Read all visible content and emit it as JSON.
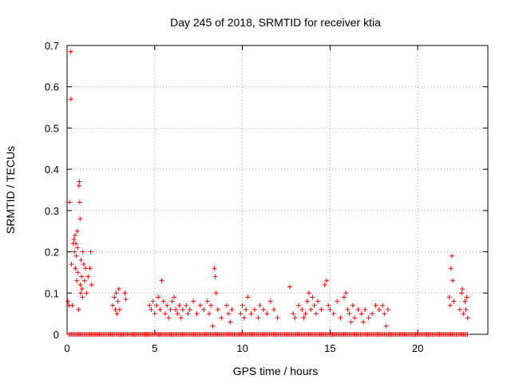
{
  "chart_data": {
    "type": "scatter",
    "title": "Day 245 of 2018, SRMTID for receiver ktia",
    "xlabel": "GPS time / hours",
    "ylabel": "SRMTID / TECUs",
    "xlim": [
      0,
      24
    ],
    "ylim": [
      0,
      0.7
    ],
    "xticks": [
      0,
      5,
      10,
      15,
      20
    ],
    "yticks": [
      0,
      0.1,
      0.2,
      0.3,
      0.4,
      0.5,
      0.6,
      0.7
    ],
    "ytick_labels": [
      "0",
      "0.1",
      "0.2",
      "0.3",
      "0.4",
      "0.5",
      "0.6",
      "0.7"
    ],
    "grid": true,
    "marker": "plus",
    "color": "#ff0000",
    "series": [
      {
        "name": "SRMTID",
        "points": [
          [
            0.05,
            0.08
          ],
          [
            0.1,
            0.07
          ],
          [
            0.15,
            0.32
          ],
          [
            0.2,
            0.685
          ],
          [
            0.22,
            0.57
          ],
          [
            0.25,
            0.17
          ],
          [
            0.3,
            0.07
          ],
          [
            0.35,
            0.22
          ],
          [
            0.4,
            0.23
          ],
          [
            0.42,
            0.2
          ],
          [
            0.45,
            0.24
          ],
          [
            0.48,
            0.16
          ],
          [
            0.5,
            0.22
          ],
          [
            0.52,
            0.19
          ],
          [
            0.55,
            0.13
          ],
          [
            0.58,
            0.25
          ],
          [
            0.6,
            0.21
          ],
          [
            0.62,
            0.15
          ],
          [
            0.65,
            0.06
          ],
          [
            0.68,
            0.36
          ],
          [
            0.7,
            0.37
          ],
          [
            0.72,
            0.32
          ],
          [
            0.74,
            0.28
          ],
          [
            0.76,
            0.12
          ],
          [
            0.78,
            0.1
          ],
          [
            0.8,
            0.18
          ],
          [
            0.82,
            0.14
          ],
          [
            0.85,
            0.11
          ],
          [
            0.88,
            0.09
          ],
          [
            0.9,
            0.2
          ],
          [
            0.95,
            0.17
          ],
          [
            1.0,
            0.13
          ],
          [
            1.05,
            0.16
          ],
          [
            1.1,
            0.1
          ],
          [
            1.2,
            0.14
          ],
          [
            1.3,
            0.16
          ],
          [
            1.35,
            0.2
          ],
          [
            1.4,
            0.12
          ],
          [
            2.6,
            0.07
          ],
          [
            2.7,
            0.09
          ],
          [
            2.75,
            0.06
          ],
          [
            2.8,
            0.1
          ],
          [
            2.85,
            0.05
          ],
          [
            2.9,
            0.08
          ],
          [
            2.95,
            0.11
          ],
          [
            3.0,
            0.06
          ],
          [
            3.3,
            0.1
          ],
          [
            3.35,
            0.085
          ],
          [
            4.7,
            0.07
          ],
          [
            4.8,
            0.06
          ],
          [
            4.9,
            0.08
          ],
          [
            5.0,
            0.05
          ],
          [
            5.1,
            0.07
          ],
          [
            5.2,
            0.09
          ],
          [
            5.3,
            0.06
          ],
          [
            5.4,
            0.13
          ],
          [
            5.5,
            0.08
          ],
          [
            5.6,
            0.05
          ],
          [
            5.7,
            0.07
          ],
          [
            5.8,
            0.04
          ],
          [
            5.9,
            0.06
          ],
          [
            6.0,
            0.08
          ],
          [
            6.1,
            0.09
          ],
          [
            6.2,
            0.06
          ],
          [
            6.3,
            0.05
          ],
          [
            6.4,
            0.07
          ],
          [
            6.5,
            0.04
          ],
          [
            6.6,
            0.06
          ],
          [
            6.8,
            0.07
          ],
          [
            6.9,
            0.05
          ],
          [
            7.0,
            0.06
          ],
          [
            7.2,
            0.08
          ],
          [
            7.4,
            0.05
          ],
          [
            7.6,
            0.07
          ],
          [
            7.8,
            0.06
          ],
          [
            8.0,
            0.08
          ],
          [
            8.1,
            0.05
          ],
          [
            8.2,
            0.07
          ],
          [
            8.3,
            0.02
          ],
          [
            8.4,
            0.16
          ],
          [
            8.45,
            0.14
          ],
          [
            8.5,
            0.1
          ],
          [
            8.6,
            0.06
          ],
          [
            8.8,
            0.04
          ],
          [
            9.1,
            0.07
          ],
          [
            9.2,
            0.05
          ],
          [
            9.3,
            0.03
          ],
          [
            9.4,
            0.06
          ],
          [
            9.9,
            0.05
          ],
          [
            10.0,
            0.07
          ],
          [
            10.1,
            0.04
          ],
          [
            10.2,
            0.06
          ],
          [
            10.3,
            0.09
          ],
          [
            10.5,
            0.05
          ],
          [
            10.7,
            0.06
          ],
          [
            10.9,
            0.04
          ],
          [
            11.0,
            0.07
          ],
          [
            11.2,
            0.06
          ],
          [
            11.4,
            0.05
          ],
          [
            11.6,
            0.08
          ],
          [
            11.8,
            0.06
          ],
          [
            12.0,
            0.04
          ],
          [
            12.7,
            0.115
          ],
          [
            12.9,
            0.05
          ],
          [
            13.0,
            0.04
          ],
          [
            13.2,
            0.07
          ],
          [
            13.4,
            0.06
          ],
          [
            13.5,
            0.04
          ],
          [
            13.6,
            0.05
          ],
          [
            13.7,
            0.08
          ],
          [
            13.8,
            0.1
          ],
          [
            13.9,
            0.06
          ],
          [
            14.0,
            0.09
          ],
          [
            14.1,
            0.07
          ],
          [
            14.2,
            0.05
          ],
          [
            14.3,
            0.08
          ],
          [
            14.5,
            0.06
          ],
          [
            14.7,
            0.12
          ],
          [
            14.8,
            0.13
          ],
          [
            14.9,
            0.07
          ],
          [
            15.0,
            0.06
          ],
          [
            15.2,
            0.05
          ],
          [
            15.4,
            0.08
          ],
          [
            15.6,
            0.04
          ],
          [
            15.8,
            0.09
          ],
          [
            15.9,
            0.1
          ],
          [
            16.0,
            0.06
          ],
          [
            16.1,
            0.05
          ],
          [
            16.2,
            0.03
          ],
          [
            16.3,
            0.07
          ],
          [
            16.4,
            0.04
          ],
          [
            16.6,
            0.06
          ],
          [
            16.8,
            0.05
          ],
          [
            16.9,
            0.03
          ],
          [
            17.0,
            0.06
          ],
          [
            17.2,
            0.04
          ],
          [
            17.4,
            0.05
          ],
          [
            17.6,
            0.07
          ],
          [
            17.8,
            0.06
          ],
          [
            18.0,
            0.07
          ],
          [
            18.1,
            0.05
          ],
          [
            18.2,
            0.02
          ],
          [
            18.3,
            0.06
          ],
          [
            21.8,
            0.09
          ],
          [
            21.85,
            0.07
          ],
          [
            21.9,
            0.16
          ],
          [
            21.95,
            0.19
          ],
          [
            22.0,
            0.13
          ],
          [
            22.05,
            0.08
          ],
          [
            22.4,
            0.06
          ],
          [
            22.5,
            0.1
          ],
          [
            22.55,
            0.11
          ],
          [
            22.6,
            0.05
          ],
          [
            22.7,
            0.08
          ],
          [
            22.75,
            0.06
          ],
          [
            22.8,
            0.09
          ],
          [
            22.85,
            0.04
          ]
        ]
      }
    ],
    "zero_runs": [
      [
        0.1,
        1.6
      ],
      [
        1.6,
        4.5
      ],
      [
        4.5,
        12.5
      ],
      [
        12.5,
        19.0
      ],
      [
        19.0,
        22.9
      ]
    ]
  }
}
